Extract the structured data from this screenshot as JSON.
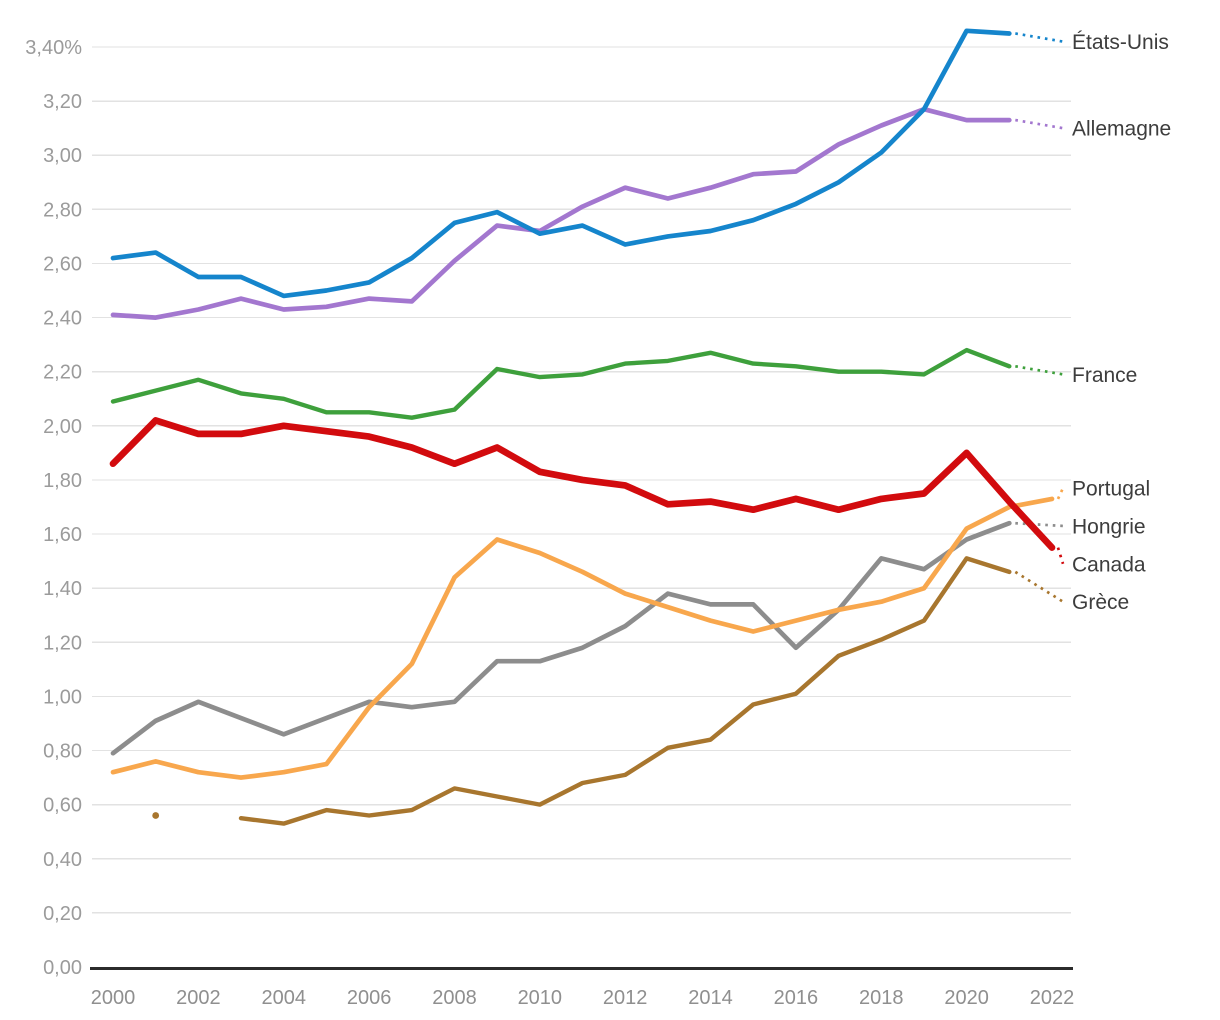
{
  "chart_data": {
    "type": "line",
    "title": "",
    "xlabel": "",
    "ylabel": "",
    "grid": true,
    "legend_position": "right-edge-labels",
    "x": [
      2000,
      2001,
      2002,
      2003,
      2004,
      2005,
      2006,
      2007,
      2008,
      2009,
      2010,
      2011,
      2012,
      2013,
      2014,
      2015,
      2016,
      2017,
      2018,
      2019,
      2020,
      2021,
      2022
    ],
    "x_ticks": [
      2000,
      2002,
      2004,
      2006,
      2008,
      2010,
      2012,
      2014,
      2016,
      2018,
      2020,
      2022
    ],
    "xlim": [
      2000,
      2022
    ],
    "ylim": [
      0,
      3.4
    ],
    "y_ticks": [
      {
        "value": 0.0,
        "label": "0,00"
      },
      {
        "value": 0.2,
        "label": "0,20"
      },
      {
        "value": 0.4,
        "label": "0,40"
      },
      {
        "value": 0.6,
        "label": "0,60"
      },
      {
        "value": 0.8,
        "label": "0,80"
      },
      {
        "value": 1.0,
        "label": "1,00"
      },
      {
        "value": 1.2,
        "label": "1,20"
      },
      {
        "value": 1.4,
        "label": "1,40"
      },
      {
        "value": 1.6,
        "label": "1,60"
      },
      {
        "value": 1.8,
        "label": "1,80"
      },
      {
        "value": 2.0,
        "label": "2,00"
      },
      {
        "value": 2.2,
        "label": "2,20"
      },
      {
        "value": 2.4,
        "label": "2,40"
      },
      {
        "value": 2.6,
        "label": "2,60"
      },
      {
        "value": 2.8,
        "label": "2,80"
      },
      {
        "value": 3.0,
        "label": "3,00"
      },
      {
        "value": 3.2,
        "label": "3,20"
      },
      {
        "value": 3.4,
        "label": "3,40%"
      }
    ],
    "series": [
      {
        "name": "États-Unis",
        "color": "#1585cc",
        "line_width": 4.7,
        "label_at": 3.42,
        "values": [
          2.62,
          2.64,
          2.55,
          2.55,
          2.48,
          2.5,
          2.53,
          2.62,
          2.75,
          2.79,
          2.71,
          2.74,
          2.67,
          2.7,
          2.72,
          2.76,
          2.82,
          2.9,
          3.01,
          3.17,
          3.46,
          3.45,
          null
        ]
      },
      {
        "name": "Allemagne",
        "color": "#a377cf",
        "line_width": 4.7,
        "label_at": 3.1,
        "values": [
          2.41,
          2.4,
          2.43,
          2.47,
          2.43,
          2.44,
          2.47,
          2.46,
          2.61,
          2.74,
          2.72,
          2.81,
          2.88,
          2.84,
          2.88,
          2.93,
          2.94,
          3.04,
          3.11,
          3.17,
          3.13,
          3.13,
          null
        ]
      },
      {
        "name": "France",
        "color": "#3ea03c",
        "line_width": 4.4,
        "label_at": 2.19,
        "values": [
          2.09,
          2.13,
          2.17,
          2.12,
          2.1,
          2.05,
          2.05,
          2.03,
          2.06,
          2.21,
          2.18,
          2.19,
          2.23,
          2.24,
          2.27,
          2.23,
          2.22,
          2.2,
          2.2,
          2.19,
          2.28,
          2.22,
          null
        ]
      },
      {
        "name": "Portugal",
        "color": "#f8a74d",
        "line_width": 4.7,
        "label_at": 1.77,
        "values": [
          0.72,
          0.76,
          0.72,
          0.7,
          0.72,
          0.75,
          0.96,
          1.12,
          1.44,
          1.58,
          1.53,
          1.46,
          1.38,
          1.33,
          1.28,
          1.24,
          1.28,
          1.32,
          1.35,
          1.4,
          1.62,
          1.7,
          1.73
        ]
      },
      {
        "name": "Hongrie",
        "color": "#8d8d8d",
        "line_width": 4.7,
        "label_at": 1.63,
        "values": [
          0.79,
          0.91,
          0.98,
          0.92,
          0.86,
          0.92,
          0.98,
          0.96,
          0.98,
          1.13,
          1.13,
          1.18,
          1.26,
          1.38,
          1.34,
          1.34,
          1.18,
          1.32,
          1.51,
          1.47,
          1.58,
          1.64,
          null
        ]
      },
      {
        "name": "Canada",
        "color": "#d20b0e",
        "line_width": 6.7,
        "label_at": 1.49,
        "values": [
          1.86,
          2.02,
          1.97,
          1.97,
          2.0,
          1.98,
          1.96,
          1.92,
          1.86,
          1.92,
          1.83,
          1.8,
          1.78,
          1.71,
          1.72,
          1.69,
          1.73,
          1.69,
          1.73,
          1.75,
          1.9,
          1.72,
          1.55
        ]
      },
      {
        "name": "Grèce",
        "color": "#a8762e",
        "line_width": 4.4,
        "label_at": 1.35,
        "values": [
          null,
          0.56,
          null,
          0.55,
          0.53,
          0.58,
          0.56,
          0.58,
          0.66,
          0.63,
          0.6,
          0.68,
          0.71,
          0.81,
          0.84,
          0.97,
          1.01,
          1.15,
          1.21,
          1.28,
          1.51,
          1.46,
          null
        ]
      }
    ],
    "draw_order": [
      "Hongrie",
      "Grèce",
      "Portugal",
      "Canada",
      "France",
      "Allemagne",
      "États-Unis"
    ],
    "axis_color": "#2b2b2b",
    "gridline_color": "#e2e2e2"
  }
}
